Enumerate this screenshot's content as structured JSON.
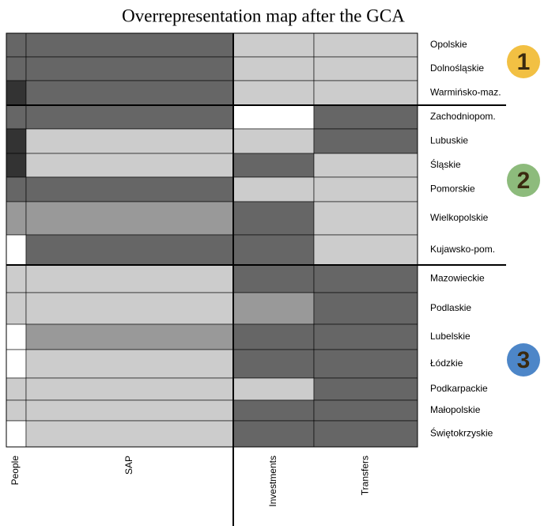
{
  "title": "Overrepresentation map after the GCA",
  "columns": [
    "People",
    "SAP",
    "Investments",
    "Transfers"
  ],
  "shades": {
    "vdark": "#333333",
    "dark": "#666666",
    "medium": "#999999",
    "light": "#cccccc",
    "white": "#ffffff"
  },
  "rows": [
    {
      "name": "Opolskie",
      "cells": [
        "dark",
        "dark",
        "light",
        "light"
      ]
    },
    {
      "name": "Dolnośląskie",
      "cells": [
        "dark",
        "dark",
        "light",
        "light"
      ]
    },
    {
      "name": "Warmińsko-maz.",
      "cells": [
        "vdark",
        "dark",
        "light",
        "light"
      ]
    },
    {
      "name": "Zachodniopom.",
      "cells": [
        "dark",
        "dark",
        "white",
        "dark"
      ]
    },
    {
      "name": "Lubuskie",
      "cells": [
        "vdark",
        "light",
        "light",
        "dark"
      ]
    },
    {
      "name": "Śląskie",
      "cells": [
        "vdark",
        "light",
        "dark",
        "light"
      ]
    },
    {
      "name": "Pomorskie",
      "cells": [
        "dark",
        "dark",
        "light",
        "light"
      ]
    },
    {
      "name": "Wielkopolskie",
      "cells": [
        "medium",
        "medium",
        "dark",
        "light"
      ]
    },
    {
      "name": "Kujawsko-pom.",
      "cells": [
        "white",
        "dark",
        "dark",
        "light"
      ]
    },
    {
      "name": "Mazowieckie",
      "cells": [
        "light",
        "light",
        "dark",
        "dark"
      ]
    },
    {
      "name": "Podlaskie",
      "cells": [
        "light",
        "light",
        "medium",
        "dark"
      ]
    },
    {
      "name": "Lubelskie",
      "cells": [
        "white",
        "medium",
        "dark",
        "dark"
      ]
    },
    {
      "name": "Łódzkie",
      "cells": [
        "white",
        "light",
        "dark",
        "dark"
      ]
    },
    {
      "name": "Podkarpackie",
      "cells": [
        "light",
        "light",
        "light",
        "dark"
      ]
    },
    {
      "name": "Małopolskie",
      "cells": [
        "light",
        "light",
        "dark",
        "dark"
      ]
    },
    {
      "name": "Świętokrzyskie",
      "cells": [
        "white",
        "light",
        "dark",
        "dark"
      ]
    }
  ],
  "groups": [
    {
      "label": "1",
      "color": "#f2c043"
    },
    {
      "label": "2",
      "color": "#8dbb7c"
    },
    {
      "label": "3",
      "color": "#4d86c8"
    }
  ]
}
